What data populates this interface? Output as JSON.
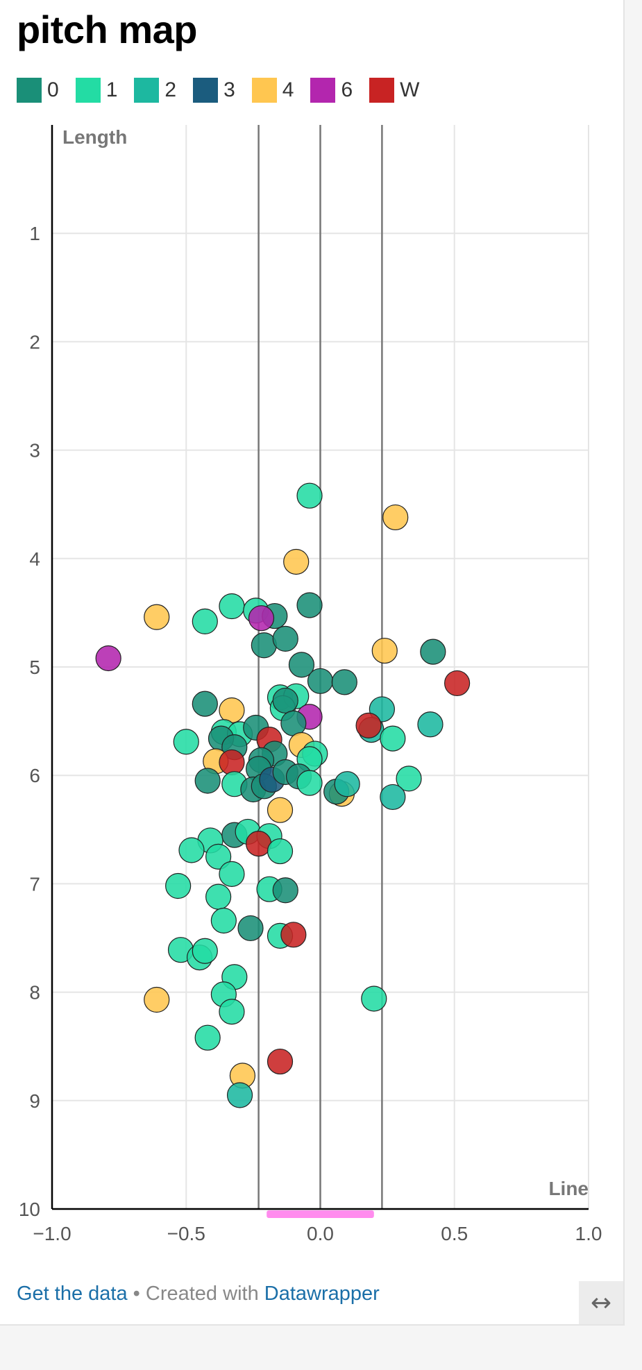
{
  "page": {
    "title": "pitch map",
    "footer": {
      "link1": "Get the data",
      "separator": " • Created with ",
      "link2": "Datawrapper"
    },
    "expand_icon": "↔"
  },
  "colors": {
    "0": "#1a8f78",
    "1": "#23dca4",
    "2": "#1db8a0",
    "3": "#1b5c7e",
    "4": "#ffc650",
    "6": "#b326ae",
    "W": "#c82323",
    "grid": "#e5e5e5",
    "stump": "#777777",
    "axis": "#000000",
    "crease": "#ff8cee"
  },
  "chart_data": {
    "type": "scatter",
    "title": "pitch map",
    "xlabel": "Line",
    "ylabel": "Length",
    "xlim": [
      -1.0,
      1.0
    ],
    "ylim": [
      0,
      10
    ],
    "y_reversed": true,
    "x_ticks": [
      "−1.0",
      "−0.5",
      "0.0",
      "0.5",
      "1.0"
    ],
    "x_tick_values": [
      -1.0,
      -0.5,
      0.0,
      0.5,
      1.0
    ],
    "y_ticks": [
      "1",
      "2",
      "3",
      "4",
      "5",
      "6",
      "7",
      "8",
      "9",
      "10"
    ],
    "y_tick_values": [
      1,
      2,
      3,
      4,
      5,
      6,
      7,
      8,
      9,
      10
    ],
    "stump_lines_x": [
      -0.23,
      0.0,
      0.23
    ],
    "crease_range_x": [
      -0.2,
      0.2
    ],
    "grid": true,
    "legend": [
      {
        "key": "0",
        "label": "0"
      },
      {
        "key": "1",
        "label": "1"
      },
      {
        "key": "2",
        "label": "2"
      },
      {
        "key": "3",
        "label": "3"
      },
      {
        "key": "4",
        "label": "4"
      },
      {
        "key": "6",
        "label": "6"
      },
      {
        "key": "W",
        "label": "W"
      }
    ],
    "points": [
      {
        "x": -0.04,
        "y": 3.42,
        "r": "1"
      },
      {
        "x": 0.28,
        "y": 3.62,
        "r": "4"
      },
      {
        "x": -0.09,
        "y": 4.03,
        "r": "4"
      },
      {
        "x": -0.61,
        "y": 4.54,
        "r": "4"
      },
      {
        "x": -0.43,
        "y": 4.58,
        "r": "1"
      },
      {
        "x": -0.33,
        "y": 4.44,
        "r": "1"
      },
      {
        "x": -0.24,
        "y": 4.48,
        "r": "1"
      },
      {
        "x": -0.17,
        "y": 4.53,
        "r": "0"
      },
      {
        "x": -0.04,
        "y": 4.43,
        "r": "0"
      },
      {
        "x": -0.22,
        "y": 4.55,
        "r": "6"
      },
      {
        "x": -0.21,
        "y": 4.8,
        "r": "0"
      },
      {
        "x": -0.13,
        "y": 4.74,
        "r": "0"
      },
      {
        "x": -0.79,
        "y": 4.92,
        "r": "6"
      },
      {
        "x": 0.24,
        "y": 4.85,
        "r": "4"
      },
      {
        "x": 0.42,
        "y": 4.86,
        "r": "0"
      },
      {
        "x": 0.51,
        "y": 5.15,
        "r": "W"
      },
      {
        "x": -0.07,
        "y": 4.98,
        "r": "0"
      },
      {
        "x": 0.0,
        "y": 5.13,
        "r": "0"
      },
      {
        "x": 0.09,
        "y": 5.14,
        "r": "0"
      },
      {
        "x": -0.43,
        "y": 5.34,
        "r": "0"
      },
      {
        "x": -0.33,
        "y": 5.4,
        "r": "4"
      },
      {
        "x": -0.15,
        "y": 5.28,
        "r": "1"
      },
      {
        "x": -0.09,
        "y": 5.27,
        "r": "1"
      },
      {
        "x": -0.14,
        "y": 5.38,
        "r": "1"
      },
      {
        "x": -0.13,
        "y": 5.31,
        "r": "0"
      },
      {
        "x": -0.04,
        "y": 5.46,
        "r": "6"
      },
      {
        "x": -0.1,
        "y": 5.52,
        "r": "0"
      },
      {
        "x": 0.23,
        "y": 5.39,
        "r": "2"
      },
      {
        "x": 0.41,
        "y": 5.53,
        "r": "2"
      },
      {
        "x": 0.19,
        "y": 5.58,
        "r": "2"
      },
      {
        "x": 0.18,
        "y": 5.54,
        "r": "W"
      },
      {
        "x": 0.27,
        "y": 5.66,
        "r": "1"
      },
      {
        "x": -0.5,
        "y": 5.69,
        "r": "1"
      },
      {
        "x": -0.36,
        "y": 5.6,
        "r": "1"
      },
      {
        "x": -0.3,
        "y": 5.62,
        "r": "1"
      },
      {
        "x": -0.24,
        "y": 5.56,
        "r": "0"
      },
      {
        "x": -0.37,
        "y": 5.66,
        "r": "0"
      },
      {
        "x": -0.32,
        "y": 5.74,
        "r": "0"
      },
      {
        "x": -0.19,
        "y": 5.67,
        "r": "W"
      },
      {
        "x": -0.07,
        "y": 5.72,
        "r": "4"
      },
      {
        "x": -0.17,
        "y": 5.8,
        "r": "0"
      },
      {
        "x": -0.02,
        "y": 5.8,
        "r": "1"
      },
      {
        "x": -0.04,
        "y": 5.85,
        "r": "1"
      },
      {
        "x": -0.39,
        "y": 5.87,
        "r": "4"
      },
      {
        "x": -0.33,
        "y": 5.88,
        "r": "W"
      },
      {
        "x": -0.22,
        "y": 5.86,
        "r": "0"
      },
      {
        "x": -0.23,
        "y": 5.94,
        "r": "0"
      },
      {
        "x": -0.42,
        "y": 6.05,
        "r": "0"
      },
      {
        "x": -0.32,
        "y": 6.08,
        "r": "1"
      },
      {
        "x": -0.25,
        "y": 6.13,
        "r": "0"
      },
      {
        "x": -0.21,
        "y": 6.1,
        "r": "0"
      },
      {
        "x": -0.18,
        "y": 6.04,
        "r": "3"
      },
      {
        "x": -0.13,
        "y": 5.97,
        "r": "0"
      },
      {
        "x": -0.08,
        "y": 6.01,
        "r": "0"
      },
      {
        "x": -0.04,
        "y": 6.07,
        "r": "1"
      },
      {
        "x": 0.33,
        "y": 6.03,
        "r": "1"
      },
      {
        "x": 0.08,
        "y": 6.17,
        "r": "4"
      },
      {
        "x": 0.06,
        "y": 6.15,
        "r": "0"
      },
      {
        "x": 0.1,
        "y": 6.08,
        "r": "2"
      },
      {
        "x": 0.27,
        "y": 6.2,
        "r": "2"
      },
      {
        "x": -0.15,
        "y": 6.32,
        "r": "4"
      },
      {
        "x": -0.41,
        "y": 6.6,
        "r": "1"
      },
      {
        "x": -0.32,
        "y": 6.55,
        "r": "0"
      },
      {
        "x": -0.27,
        "y": 6.52,
        "r": "1"
      },
      {
        "x": -0.19,
        "y": 6.56,
        "r": "1"
      },
      {
        "x": -0.23,
        "y": 6.63,
        "r": "W"
      },
      {
        "x": -0.15,
        "y": 6.7,
        "r": "1"
      },
      {
        "x": -0.48,
        "y": 6.69,
        "r": "1"
      },
      {
        "x": -0.38,
        "y": 6.75,
        "r": "1"
      },
      {
        "x": -0.33,
        "y": 6.91,
        "r": "1"
      },
      {
        "x": -0.53,
        "y": 7.02,
        "r": "1"
      },
      {
        "x": -0.19,
        "y": 7.05,
        "r": "1"
      },
      {
        "x": -0.13,
        "y": 7.06,
        "r": "0"
      },
      {
        "x": -0.38,
        "y": 7.12,
        "r": "1"
      },
      {
        "x": -0.36,
        "y": 7.34,
        "r": "1"
      },
      {
        "x": -0.26,
        "y": 7.41,
        "r": "0"
      },
      {
        "x": -0.15,
        "y": 7.48,
        "r": "1"
      },
      {
        "x": -0.1,
        "y": 7.47,
        "r": "W"
      },
      {
        "x": -0.52,
        "y": 7.61,
        "r": "1"
      },
      {
        "x": -0.45,
        "y": 7.68,
        "r": "1"
      },
      {
        "x": -0.43,
        "y": 7.62,
        "r": "1"
      },
      {
        "x": -0.32,
        "y": 7.86,
        "r": "1"
      },
      {
        "x": -0.36,
        "y": 8.02,
        "r": "1"
      },
      {
        "x": -0.61,
        "y": 8.07,
        "r": "4"
      },
      {
        "x": 0.2,
        "y": 8.06,
        "r": "1"
      },
      {
        "x": -0.33,
        "y": 8.18,
        "r": "1"
      },
      {
        "x": -0.42,
        "y": 8.42,
        "r": "1"
      },
      {
        "x": -0.15,
        "y": 8.64,
        "r": "W"
      },
      {
        "x": -0.29,
        "y": 8.77,
        "r": "4"
      },
      {
        "x": -0.3,
        "y": 8.95,
        "r": "2"
      }
    ]
  }
}
